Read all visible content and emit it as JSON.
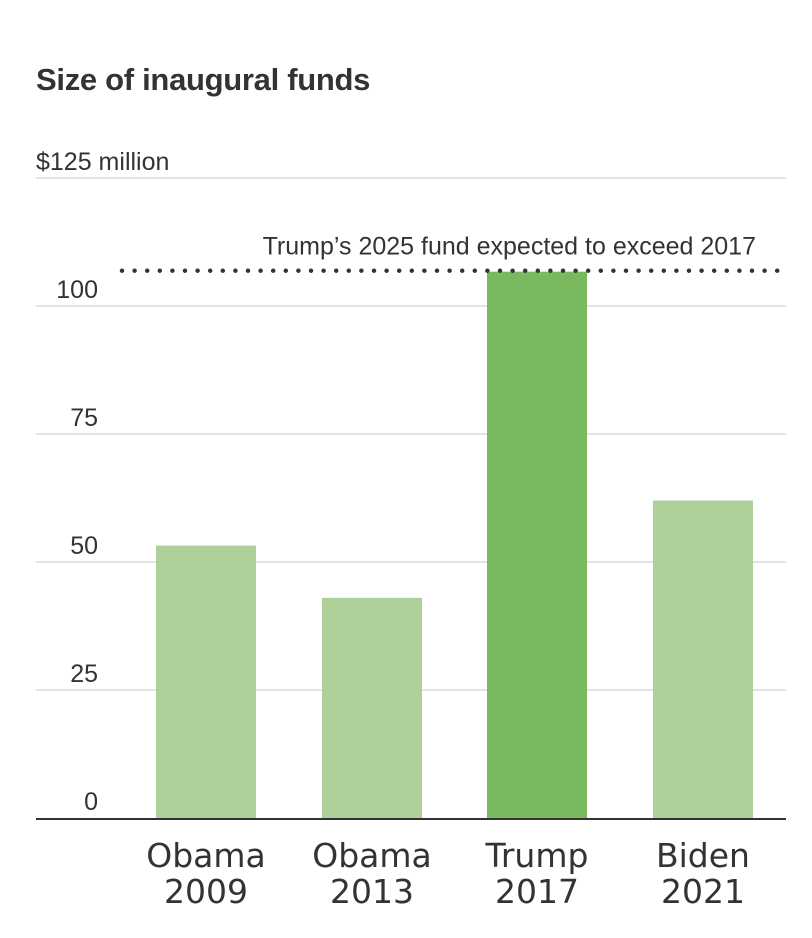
{
  "chart_data": {
    "type": "bar",
    "title": "Size of inaugural funds",
    "ylabel": "",
    "xlabel": "",
    "y_unit_label": "$125 million",
    "ylim": [
      0,
      125
    ],
    "yticks": [
      0,
      25,
      50,
      75,
      100,
      125
    ],
    "ytick_labels": [
      "0",
      "25",
      "50",
      "75",
      "100",
      "$125 million"
    ],
    "grid": true,
    "categories": [
      [
        "Obama",
        "2009"
      ],
      [
        "Obama",
        "2013"
      ],
      [
        "Trump",
        "2017"
      ],
      [
        "Biden",
        "2021"
      ]
    ],
    "values": [
      53.2,
      43,
      106.7,
      62
    ],
    "bar_colors": [
      "#adcf98",
      "#adcf98",
      "#78b85f",
      "#adcf98"
    ],
    "annotation": {
      "text": "Trump’s 2025 fund expected to exceed 2017",
      "y_value": 106.7,
      "style": "dotted-line"
    }
  }
}
